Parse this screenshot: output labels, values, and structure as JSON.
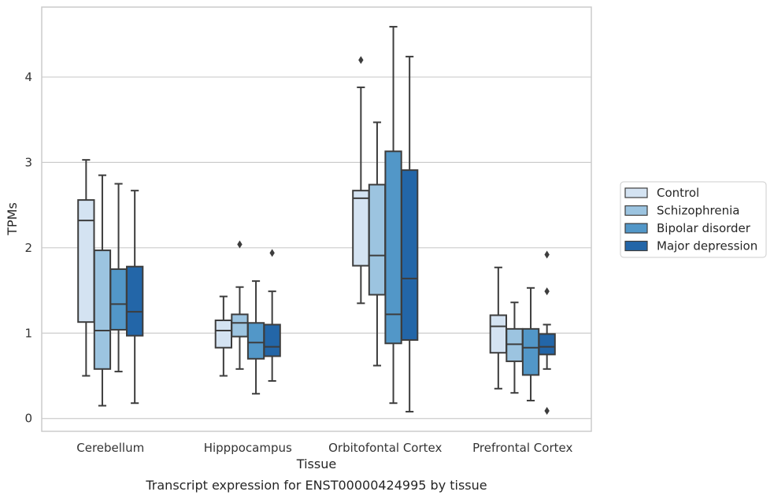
{
  "caption": "Transcript expression for ENST00000424995 by tissue",
  "chart_data": {
    "type": "box",
    "xlabel": "Tissue",
    "ylabel": "TPMs",
    "ylim": [
      -0.15,
      4.82
    ],
    "yticks": [
      0,
      1,
      2,
      3,
      4
    ],
    "grid": "horizontal",
    "legend_position": "right",
    "categories": [
      "Cerebellum",
      "Hipppocampus",
      "Orbitofontal Cortex",
      "Prefrontal Cortex"
    ],
    "series": [
      {
        "name": "Control",
        "color": "#d4e3f2",
        "boxes": [
          {
            "whislo": 0.5,
            "q1": 1.13,
            "med": 2.32,
            "q3": 2.56,
            "whishi": 3.03,
            "fliers": []
          },
          {
            "whislo": 0.5,
            "q1": 0.83,
            "med": 1.03,
            "q3": 1.15,
            "whishi": 1.43,
            "fliers": []
          },
          {
            "whislo": 1.35,
            "q1": 1.79,
            "med": 2.58,
            "q3": 2.67,
            "whishi": 3.88,
            "fliers": [
              4.2
            ]
          },
          {
            "whislo": 0.35,
            "q1": 0.77,
            "med": 1.08,
            "q3": 1.21,
            "whishi": 1.77,
            "fliers": []
          }
        ]
      },
      {
        "name": "Schizophrenia",
        "color": "#9cc4e0",
        "boxes": [
          {
            "whislo": 0.15,
            "q1": 0.58,
            "med": 1.03,
            "q3": 1.97,
            "whishi": 2.85,
            "fliers": []
          },
          {
            "whislo": 0.58,
            "q1": 0.96,
            "med": 1.12,
            "q3": 1.22,
            "whishi": 1.54,
            "fliers": [
              2.04
            ]
          },
          {
            "whislo": 0.62,
            "q1": 1.45,
            "med": 1.91,
            "q3": 2.74,
            "whishi": 3.47,
            "fliers": []
          },
          {
            "whislo": 0.3,
            "q1": 0.67,
            "med": 0.87,
            "q3": 1.05,
            "whishi": 1.36,
            "fliers": []
          }
        ]
      },
      {
        "name": "Bipolar disorder",
        "color": "#5297c8",
        "boxes": [
          {
            "whislo": 0.55,
            "q1": 1.04,
            "med": 1.34,
            "q3": 1.75,
            "whishi": 2.75,
            "fliers": []
          },
          {
            "whislo": 0.29,
            "q1": 0.7,
            "med": 0.89,
            "q3": 1.12,
            "whishi": 1.61,
            "fliers": []
          },
          {
            "whislo": 0.18,
            "q1": 0.88,
            "med": 1.22,
            "q3": 3.13,
            "whishi": 4.59,
            "fliers": []
          },
          {
            "whislo": 0.21,
            "q1": 0.51,
            "med": 0.83,
            "q3": 1.05,
            "whishi": 1.53,
            "fliers": []
          }
        ]
      },
      {
        "name": "Major depression",
        "color": "#2366a8",
        "boxes": [
          {
            "whislo": 0.18,
            "q1": 0.97,
            "med": 1.25,
            "q3": 1.78,
            "whishi": 2.67,
            "fliers": []
          },
          {
            "whislo": 0.44,
            "q1": 0.73,
            "med": 0.84,
            "q3": 1.1,
            "whishi": 1.49,
            "fliers": [
              1.94
            ]
          },
          {
            "whislo": 0.08,
            "q1": 0.92,
            "med": 1.64,
            "q3": 2.91,
            "whishi": 4.24,
            "fliers": []
          },
          {
            "whislo": 0.58,
            "q1": 0.75,
            "med": 0.84,
            "q3": 0.99,
            "whishi": 1.1,
            "fliers": [
              1.92,
              1.49,
              0.09
            ]
          }
        ]
      }
    ]
  }
}
